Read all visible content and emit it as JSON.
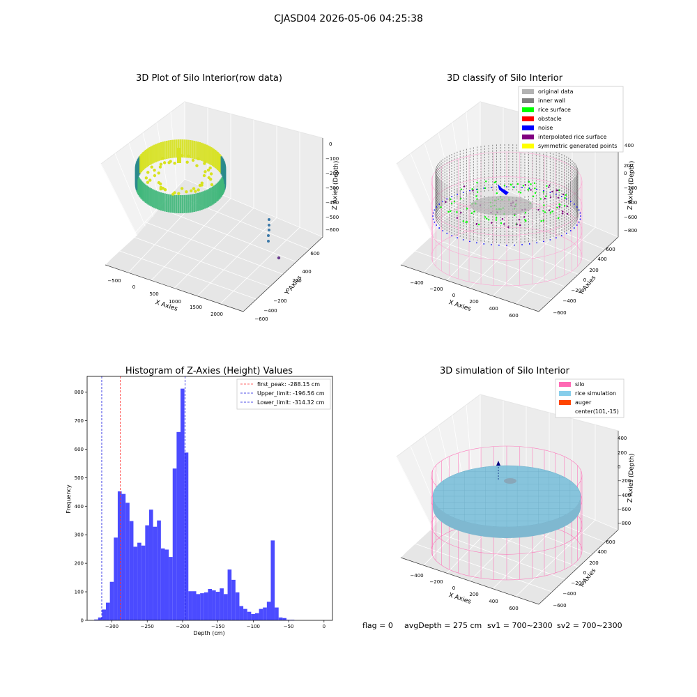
{
  "figure": {
    "suptitle": "CJASD04 2026-05-06 04:25:38",
    "footer": {
      "flag": "flag = 0",
      "avg": "avgDepth = 275 cm",
      "sv1": "sv1 = 700~2300",
      "sv2": "sv2 = 700~2300"
    }
  },
  "chart_data": [
    {
      "type": "scatter",
      "title": "3D Plot of Silo Interior(row data)",
      "xlabel": "X Axies",
      "ylabel": "Y Axies",
      "zlabel": "Z Axies (Depth)",
      "x_ticks": [
        "−500",
        "0",
        "500",
        "1000",
        "1500",
        "2000"
      ],
      "y_ticks": [
        "600",
        "400",
        "200",
        "0",
        "−200",
        "−400",
        "−600"
      ],
      "z_ticks": [
        "0",
        "−100",
        "−200",
        "−300",
        "−400",
        "−500",
        "−600"
      ],
      "colors": {
        "high": "#d7e21f",
        "mid": "#3fb77a",
        "low": "#2a8a8c",
        "outlier1": "#3b78a8",
        "outlier2": "#6a3d8f"
      }
    },
    {
      "type": "scatter",
      "title": "3D classify of Silo Interior",
      "xlabel": "X Axies",
      "ylabel": "Y Axies",
      "zlabel": "Z Axies (Depth)",
      "x_ticks": [
        "−400",
        "−200",
        "0",
        "200",
        "400",
        "600"
      ],
      "y_ticks": [
        "600",
        "400",
        "200",
        "0",
        "−200",
        "−400",
        "−600"
      ],
      "z_ticks": [
        "400",
        "200",
        "0",
        "−200",
        "−400",
        "−600",
        "−800"
      ],
      "legend": [
        {
          "label": "original data",
          "color": "#b3b3b3"
        },
        {
          "label": "inner wall",
          "color": "#808080"
        },
        {
          "label": "rice surface",
          "color": "#00ff00"
        },
        {
          "label": "obstacle",
          "color": "#ff0000"
        },
        {
          "label": "noise",
          "color": "#0000ff"
        },
        {
          "label": "interpolated rice surface",
          "color": "#800080"
        },
        {
          "label": "symmetric generated points",
          "color": "#ffff00"
        }
      ],
      "cage_color": "#ff9ccf"
    },
    {
      "type": "bar",
      "title": "Histogram of Z-Axies (Height) Values",
      "xlabel": "Depth (cm)",
      "ylabel": "Frequency",
      "x_ticks": [
        -300,
        -250,
        -200,
        -150,
        -100,
        -50,
        0
      ],
      "x_tick_labels": [
        "−300",
        "−250",
        "−200",
        "−150",
        "−100",
        "−50",
        "0"
      ],
      "y_ticks": [
        0,
        100,
        200,
        300,
        400,
        500,
        600,
        700,
        800
      ],
      "xlim": [
        -335,
        12
      ],
      "ylim": [
        0,
        855
      ],
      "bar_color": "#4b4bff",
      "bin_start": -325,
      "bin_width": 5.55,
      "values": [
        3,
        10,
        38,
        62,
        135,
        290,
        452,
        443,
        412,
        348,
        258,
        272,
        262,
        333,
        388,
        328,
        350,
        252,
        248,
        222,
        532,
        660,
        812,
        588,
        102,
        102,
        92,
        95,
        98,
        110,
        105,
        100,
        112,
        92,
        178,
        142,
        98,
        50,
        40,
        30,
        22,
        25,
        40,
        45,
        65,
        280,
        45,
        10,
        8,
        2,
        2
      ],
      "lines": [
        {
          "x": -288.15,
          "color": "#ff3030",
          "label": "first_peak: -288.15 cm"
        },
        {
          "x": -196.56,
          "color": "#1515e0",
          "label": "Upper_limit: -196.56 cm"
        },
        {
          "x": -314.32,
          "color": "#1515e0",
          "label": "Lower_limit: -314.32 cm"
        }
      ]
    },
    {
      "type": "scatter",
      "title": "3D simulation of Silo Interior",
      "xlabel": "X Axies",
      "ylabel": "Y Axies",
      "zlabel": "Z Axies (Depth)",
      "x_ticks": [
        "−400",
        "−200",
        "0",
        "200",
        "400",
        "600"
      ],
      "y_ticks": [
        "600",
        "400",
        "200",
        "0",
        "−200",
        "−400",
        "−600"
      ],
      "z_ticks": [
        "400",
        "200",
        "0",
        "−200",
        "−400",
        "−600",
        "−800"
      ],
      "legend": [
        {
          "label": "silo",
          "color": "#ff69b4"
        },
        {
          "label": "rice simulation",
          "color": "#87ceeb"
        },
        {
          "label": "auger",
          "color": "#ff4500"
        },
        {
          "label": "center(101,-15)",
          "color": ""
        }
      ],
      "cage_color": "#ff69b4",
      "surface_color": "#87c4dc"
    }
  ]
}
